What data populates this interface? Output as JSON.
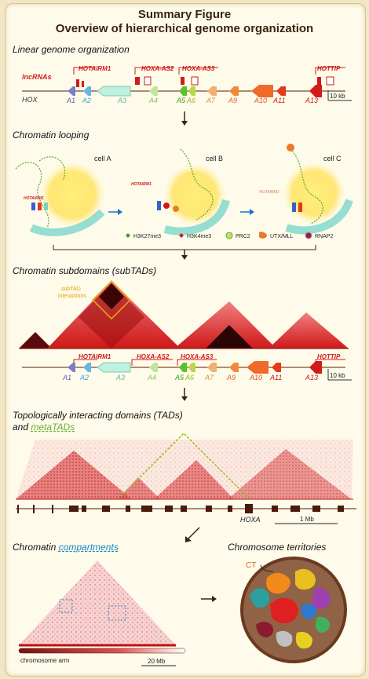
{
  "title": {
    "line1": "Summary Figure",
    "line2": "Overview of hierarchical genome organization"
  },
  "sections": {
    "linear": "Linear genome organization",
    "looping": "Chromatin looping",
    "subtads": "Chromatin subdomains (subTADs)",
    "tads_line1": "Topologically interacting domains (TADs)",
    "tads_and": "and ",
    "tads_meta": "metaTADs",
    "compart_prefix": "Chromatin ",
    "compart_word": "compartments",
    "territories": "Chromosome territories"
  },
  "genes": {
    "a1": "A1",
    "a2": "A2",
    "a3": "A3",
    "a4": "A4",
    "a5": "A5",
    "a6": "A6",
    "a7": "A7",
    "a9": "A9",
    "a10": "A10",
    "a11": "A11",
    "a13": "A13"
  },
  "lncrnas": {
    "label": "lncRNAs",
    "hotairm1": "HOTAIRM1",
    "hoxa_as2": "HOXA-AS2",
    "hoxa_as3": "HOXA-AS3",
    "hottip": "HOTTIP"
  },
  "hox_label": "HOX",
  "scale_10kb": "10 kb",
  "cells": {
    "a": "cell A",
    "b": "cell B",
    "c": "cell C"
  },
  "looping_labels": {
    "hotairm1_a": "HOTAIRM1",
    "hotairm1_b": "HOTAIRM1",
    "hotairm1_c": "HOTAIRM1"
  },
  "legend": {
    "h3k27": "H3K27me3",
    "h3k4": "H3K4me3",
    "prc2": "PRC2",
    "utx": "UTX/MLL",
    "rnap2": "RNAP2"
  },
  "subtad_interactions": "subTAD\ninteractions",
  "subtad_line1": "subTAD",
  "subtad_line2": "interactions",
  "hoxa_label": "HOXA",
  "scale_1mb": "1 Mb",
  "scale_20mb": "20 Mb",
  "chromosome_arm": "chromosome arm",
  "ct_label": "CT",
  "colors": {
    "red": "#d11a1a",
    "accent_green": "#66b23a",
    "accent_blue": "#1a86c9",
    "panel_bg": "#fffbea"
  }
}
